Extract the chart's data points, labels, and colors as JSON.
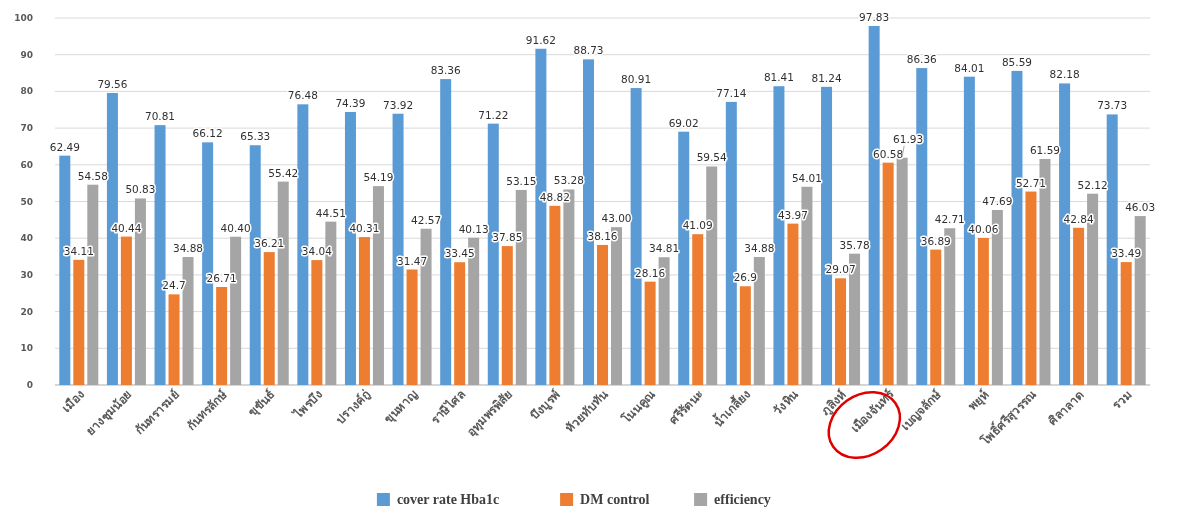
{
  "chart_data": {
    "type": "bar",
    "categories": [
      "เมือง",
      "ยางชุมน้อย",
      "กันทรารมย์",
      "กันทรลักษ์",
      "ขุขันธ์",
      "ไพรบึง",
      "ปรางค์กู่",
      "ขุนหาญ",
      "ราษีไศล",
      "อุทุมพรพิสัย",
      "บึงบูรพ์",
      "ห้วยทับทัน",
      "โนนคูณ",
      "ศรีรัตนะ",
      "น้ำเกลี้ยง",
      "วังหิน",
      "ภูสิงห์",
      "เมืองจันทร์",
      "เบญจลักษ์",
      "พยุห์",
      "โพธิ์ศรีสุวรรณ",
      "ศิลาลาด",
      "รวม"
    ],
    "series": [
      {
        "name": "cover rate Hba1c",
        "color": "#5b9bd5",
        "values": [
          62.49,
          79.56,
          70.81,
          66.12,
          65.33,
          76.48,
          74.39,
          73.92,
          83.36,
          71.22,
          91.62,
          88.73,
          80.91,
          69.02,
          77.14,
          81.41,
          81.24,
          97.83,
          86.36,
          84.01,
          85.59,
          82.18,
          73.73
        ],
        "value_labels": [
          "62.49",
          "79.56",
          "70.81",
          "66.12",
          "65.33",
          "76.48",
          "74.39",
          "73.92",
          "83.36",
          "71.22",
          "91.62",
          "88.73",
          "80.91",
          "69.02",
          "77.14",
          "81.41",
          "81.24",
          "97.83",
          "86.36",
          "84.01",
          "85.59",
          "82.18",
          "73.73"
        ]
      },
      {
        "name": "DM control",
        "color": "#ed7d31",
        "values": [
          34.11,
          40.44,
          24.7,
          26.71,
          36.21,
          34.04,
          40.31,
          31.47,
          33.45,
          37.85,
          48.82,
          38.16,
          28.16,
          41.09,
          26.9,
          43.97,
          29.07,
          60.58,
          36.89,
          40.06,
          52.71,
          42.84,
          33.49
        ],
        "value_labels": [
          "34.11",
          "40.44",
          "24.7",
          "26.71",
          "36.21",
          "34.04",
          "40.31",
          "31.47",
          "33.45",
          "37.85",
          "48.82",
          "38.16",
          "28.16",
          "41.09",
          "26.9",
          "43.97",
          "29.07",
          "60.58",
          "36.89",
          "40.06",
          "52.71",
          "42.84",
          "33.49"
        ]
      },
      {
        "name": "efficiency",
        "color": "#a5a5a5",
        "values": [
          54.58,
          50.83,
          34.88,
          40.4,
          55.42,
          44.51,
          54.19,
          42.57,
          40.13,
          53.15,
          53.28,
          43.0,
          34.81,
          59.54,
          34.88,
          54.01,
          35.78,
          61.93,
          42.71,
          47.69,
          61.59,
          52.12,
          46.03
        ],
        "value_labels": [
          "54.58",
          "50.83",
          "34.88",
          "40.40",
          "55.42",
          "44.51",
          "54.19",
          "42.57",
          "40.13",
          "53.15",
          "53.28",
          "43.00",
          "34.81",
          "59.54",
          "34.88",
          "54.01",
          "35.78",
          "61.93",
          "42.71",
          "47.69",
          "61.59",
          "52.12",
          "46.03"
        ]
      }
    ],
    "ylim": [
      0,
      100
    ],
    "yticks": [
      0,
      10,
      20,
      30,
      40,
      50,
      60,
      70,
      80,
      90,
      100
    ],
    "grid": "y",
    "legend": "bottom"
  }
}
